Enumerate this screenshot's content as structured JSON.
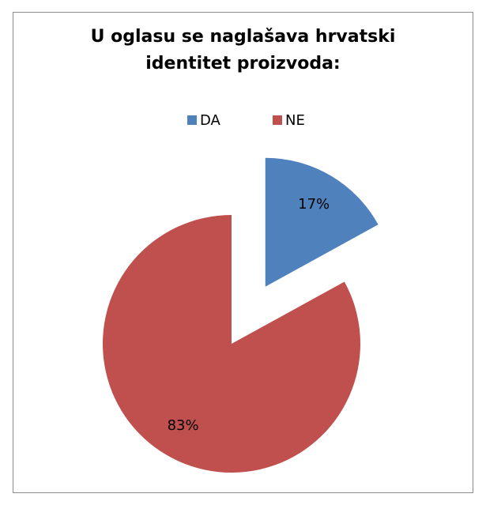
{
  "chart_data": {
    "type": "pie",
    "title": "U oglasu se naglašava hrvatski identitet proizvoda:",
    "categories": [
      "DA",
      "NE"
    ],
    "values": [
      17,
      83
    ],
    "value_labels": [
      "17%",
      "83%"
    ],
    "colors": [
      "#4f81bd",
      "#c0504d"
    ],
    "exploded": [
      true,
      false
    ],
    "legend": "top"
  }
}
